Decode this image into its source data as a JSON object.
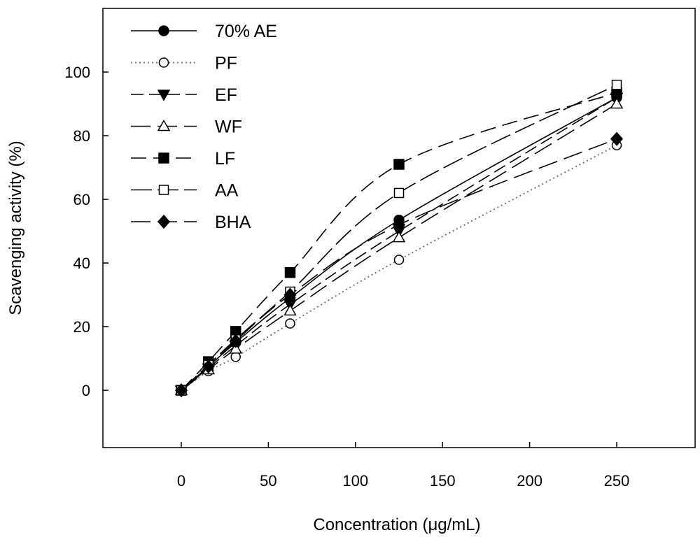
{
  "chart_data": {
    "type": "line",
    "title": "",
    "xlabel": "Concentration (μg/mL)",
    "ylabel": "Scavenging activity (%)",
    "xlim": [
      -45,
      295
    ],
    "ylim": [
      -18,
      120
    ],
    "xticks": [
      0,
      50,
      100,
      150,
      200,
      250
    ],
    "yticks": [
      0,
      20,
      40,
      60,
      80,
      100
    ],
    "x": [
      0,
      15.6,
      31.25,
      62.5,
      125,
      250
    ],
    "legend_position": "top-left",
    "series": [
      {
        "name": "70% AE",
        "marker": "filled-circle",
        "dash": "solid",
        "values": [
          0,
          7.5,
          15,
          29,
          53.5,
          92
        ]
      },
      {
        "name": "PF",
        "marker": "open-circle",
        "dash": "dotted",
        "values": [
          0,
          6,
          10.5,
          21,
          41,
          77
        ]
      },
      {
        "name": "EF",
        "marker": "filled-triangle-down",
        "dash": "dashed",
        "values": [
          0,
          7,
          14,
          27,
          50,
          92
        ]
      },
      {
        "name": "WF",
        "marker": "open-triangle-up",
        "dash": "long-dash",
        "values": [
          0,
          6.5,
          13,
          25,
          48,
          90
        ]
      },
      {
        "name": "LF",
        "marker": "filled-square",
        "dash": "dash-medium",
        "values": [
          0,
          9,
          18.5,
          37,
          71,
          93.5
        ]
      },
      {
        "name": "AA",
        "marker": "open-square",
        "dash": "dash-long",
        "values": [
          0,
          8,
          16,
          31,
          62,
          96
        ]
      },
      {
        "name": "BHA",
        "marker": "filled-diamond",
        "dash": "long-dash",
        "values": [
          0,
          7.5,
          15.5,
          30,
          52,
          79
        ]
      }
    ]
  }
}
